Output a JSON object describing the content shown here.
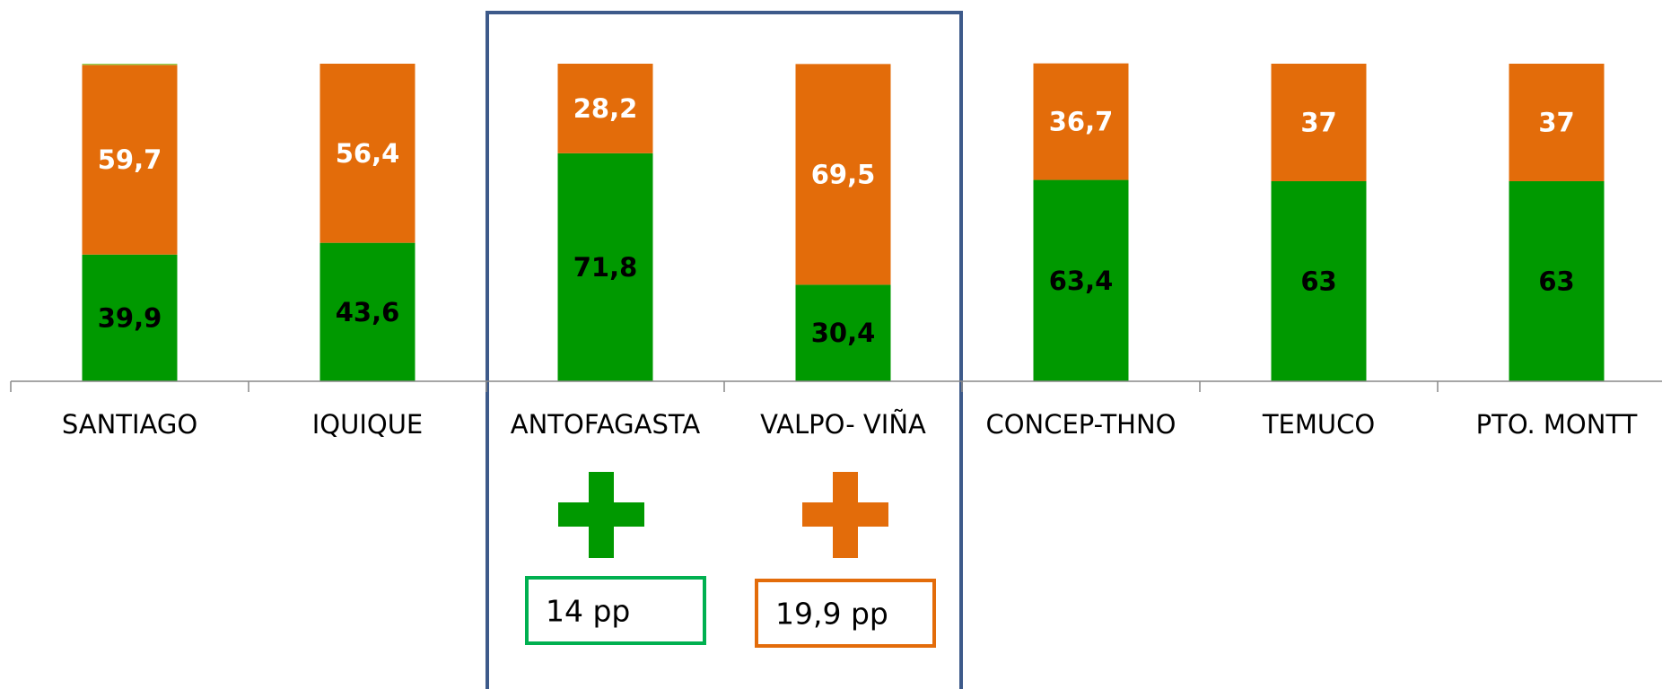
{
  "chart_data": {
    "type": "stacked_bar",
    "categories": [
      "SANTIAGO",
      "IQUIQUE",
      "ANTOFAGASTA",
      "VALPO- VIÑA",
      "CONCEP-THNO",
      "TEMUCO",
      "PTO. MONTT"
    ],
    "ylim": [
      0,
      100
    ],
    "series": [
      {
        "color": "#009900",
        "label_color": "#000000",
        "values": [
          39.9,
          43.6,
          71.8,
          30.4,
          63.4,
          63,
          63
        ],
        "value_labels": [
          "39,9",
          "43,6",
          "71,8",
          "30,4",
          "63,4",
          "63",
          "63"
        ]
      },
      {
        "color": "#e36c0a",
        "label_color": "#ffffff",
        "values": [
          59.7,
          56.4,
          28.2,
          69.5,
          36.7,
          37,
          37
        ],
        "value_labels": [
          "59,7",
          "56,4",
          "28,2",
          "69,5",
          "36,7",
          "37",
          "37"
        ]
      },
      {
        "color": "#92d050",
        "values": [
          0.4,
          0,
          0,
          0,
          0,
          0,
          0
        ]
      }
    ],
    "annotations": [
      {
        "text": "14 pp",
        "color": "#00b050"
      },
      {
        "text": "19,9 pp",
        "color": "#e36c0a"
      }
    ]
  }
}
